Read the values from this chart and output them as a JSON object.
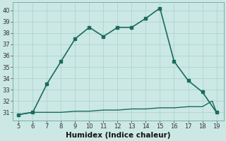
{
  "x_main": [
    5,
    6,
    7,
    8,
    9,
    10,
    11,
    12,
    13,
    14,
    15,
    16,
    17,
    18,
    19
  ],
  "y_main": [
    30.8,
    31.0,
    33.5,
    35.5,
    37.5,
    38.5,
    37.7,
    38.5,
    38.5,
    39.3,
    40.2,
    35.5,
    33.8,
    32.8,
    31.0
  ],
  "x_base": [
    5,
    6,
    7,
    8,
    9,
    10,
    11,
    12,
    13,
    14,
    15,
    16,
    17,
    18,
    18.7,
    19,
    19
  ],
  "y_base": [
    30.8,
    31.0,
    31.0,
    31.0,
    31.1,
    31.1,
    31.2,
    31.2,
    31.3,
    31.3,
    31.4,
    31.4,
    31.5,
    31.5,
    32.0,
    31.0,
    31.0
  ],
  "xlabel": "Humidex (Indice chaleur)",
  "xlim": [
    4.6,
    19.5
  ],
  "ylim": [
    30.3,
    40.7
  ],
  "xticks": [
    5,
    6,
    7,
    8,
    9,
    10,
    11,
    12,
    13,
    14,
    15,
    16,
    17,
    18,
    19
  ],
  "yticks": [
    31,
    32,
    33,
    34,
    35,
    36,
    37,
    38,
    39,
    40
  ],
  "line_color": "#1a6b5e",
  "bg_color": "#cce8e4",
  "grid_color": "#aed4ce",
  "spine_color": "#7ab0aa",
  "tick_color": "#333333",
  "xlabel_fontsize": 7.5,
  "tick_fontsize": 6.0
}
